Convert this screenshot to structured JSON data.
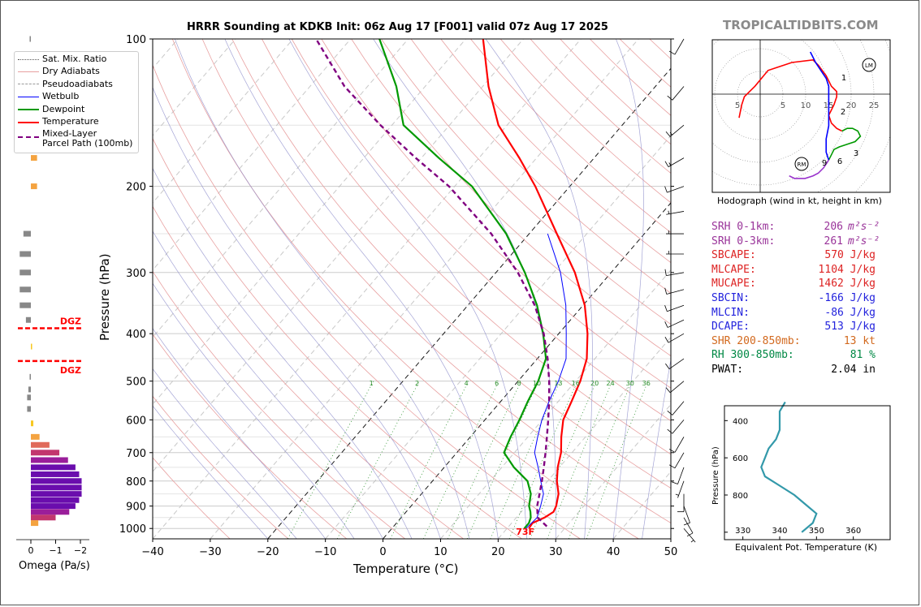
{
  "header": {
    "title": "HRRR Sounding at KDKB Init: 06z Aug 17 [F001] valid 07z Aug 17 2025",
    "brand": "TROPICALTIDBITS.COM"
  },
  "chart_data": {
    "type": "skew-t",
    "xlabel": "Temperature (°C)",
    "ylabel": "Pressure (hPa)",
    "xlim": [
      -40,
      50
    ],
    "ylim": [
      1050,
      100
    ],
    "y_log": true,
    "x_ticks": [
      "−40",
      "−30",
      "−20",
      "−10",
      "0",
      "10",
      "20",
      "30",
      "40",
      "50"
    ],
    "y_ticks": [
      "100",
      "200",
      "300",
      "400",
      "500",
      "600",
      "700",
      "800",
      "900",
      "1000"
    ],
    "mixing_ratio_labels": [
      "1",
      "2",
      "4",
      "6",
      "8",
      "10",
      "13",
      "16",
      "20",
      "24",
      "30",
      "36"
    ],
    "surface_temp_label": "73F",
    "legend": [
      {
        "label": "Sat. Mix. Ratio",
        "color": "#555555",
        "style": "dotted"
      },
      {
        "label": "Dry Adiabats",
        "color": "#e8a0a0",
        "style": "solid"
      },
      {
        "label": "Pseudoadiabats",
        "color": "#999999",
        "style": "dashed"
      },
      {
        "label": "Wetbulb",
        "color": "#0000ff",
        "style": "solid"
      },
      {
        "label": "Dewpoint",
        "color": "#009900",
        "style": "solid"
      },
      {
        "label": "Temperature",
        "color": "#ff0000",
        "style": "solid"
      },
      {
        "label": "Mixed-Layer\nParcel Path (100mb)",
        "color": "#800080",
        "style": "dashed"
      }
    ],
    "series": [
      {
        "name": "Temperature",
        "color": "#ff0000",
        "points": [
          [
            1000,
            23.8
          ],
          [
            975,
            23.6
          ],
          [
            950,
            24.9
          ],
          [
            925,
            25.6
          ],
          [
            900,
            25.2
          ],
          [
            850,
            23.8
          ],
          [
            800,
            21.6
          ],
          [
            750,
            19.7
          ],
          [
            700,
            18.1
          ],
          [
            650,
            15.8
          ],
          [
            600,
            13.6
          ],
          [
            550,
            12.3
          ],
          [
            500,
            10.8
          ],
          [
            450,
            8.6
          ],
          [
            400,
            5.0
          ],
          [
            350,
            0.3
          ],
          [
            300,
            -6.3
          ],
          [
            250,
            -15.2
          ],
          [
            200,
            -26.0
          ],
          [
            175,
            -33.0
          ],
          [
            150,
            -41.5
          ],
          [
            125,
            -49.0
          ],
          [
            100,
            -57.0
          ]
        ]
      },
      {
        "name": "Dewpoint",
        "color": "#009900",
        "points": [
          [
            1000,
            23.0
          ],
          [
            975,
            23.0
          ],
          [
            950,
            22.5
          ],
          [
            925,
            21.6
          ],
          [
            900,
            20.5
          ],
          [
            850,
            19.0
          ],
          [
            800,
            16.5
          ],
          [
            750,
            12.1
          ],
          [
            700,
            8.2
          ],
          [
            650,
            7.0
          ],
          [
            600,
            6.0
          ],
          [
            550,
            4.7
          ],
          [
            500,
            3.5
          ],
          [
            450,
            1.5
          ],
          [
            400,
            -2.7
          ],
          [
            350,
            -8.0
          ],
          [
            300,
            -15.0
          ],
          [
            250,
            -24.0
          ],
          [
            200,
            -37.0
          ],
          [
            175,
            -47.0
          ],
          [
            150,
            -58.0
          ],
          [
            125,
            -65.0
          ],
          [
            100,
            -75.0
          ]
        ]
      },
      {
        "name": "Wetbulb",
        "color": "#0000ff",
        "points": [
          [
            1000,
            23.3
          ],
          [
            950,
            23.6
          ],
          [
            900,
            22.5
          ],
          [
            850,
            21.2
          ],
          [
            800,
            18.8
          ],
          [
            750,
            16.3
          ],
          [
            700,
            13.5
          ],
          [
            650,
            11.7
          ],
          [
            600,
            9.9
          ],
          [
            550,
            8.4
          ],
          [
            500,
            7.0
          ],
          [
            450,
            5.0
          ],
          [
            400,
            1.3
          ],
          [
            350,
            -3.0
          ],
          [
            300,
            -8.8
          ],
          [
            250,
            -16.8
          ]
        ]
      },
      {
        "name": "Mixed-Layer Parcel Path (100mb)",
        "color": "#800080",
        "points": [
          [
            990,
            26.6
          ],
          [
            950,
            23.7
          ],
          [
            900,
            21.9
          ],
          [
            850,
            20.5
          ],
          [
            800,
            19.0
          ],
          [
            750,
            17.3
          ],
          [
            700,
            15.4
          ],
          [
            650,
            13.3
          ],
          [
            600,
            11.0
          ],
          [
            550,
            8.4
          ],
          [
            500,
            5.4
          ],
          [
            450,
            1.8
          ],
          [
            400,
            -2.6
          ],
          [
            350,
            -8.4
          ],
          [
            300,
            -16.2
          ],
          [
            250,
            -26.6
          ],
          [
            200,
            -41.0
          ],
          [
            175,
            -51.0
          ],
          [
            150,
            -62.0
          ],
          [
            125,
            -74.0
          ],
          [
            100,
            -86.0
          ]
        ]
      }
    ],
    "wind_barbs": [
      {
        "p": 100,
        "dir": 210,
        "kt": 10
      },
      {
        "p": 125,
        "dir": 220,
        "kt": 10
      },
      {
        "p": 150,
        "dir": 230,
        "kt": 15
      },
      {
        "p": 175,
        "dir": 240,
        "kt": 15
      },
      {
        "p": 200,
        "dir": 250,
        "kt": 10
      },
      {
        "p": 225,
        "dir": 260,
        "kt": 5
      },
      {
        "p": 250,
        "dir": 270,
        "kt": 5
      },
      {
        "p": 275,
        "dir": 270,
        "kt": 5
      },
      {
        "p": 300,
        "dir": 260,
        "kt": 10
      },
      {
        "p": 325,
        "dir": 255,
        "kt": 10
      },
      {
        "p": 350,
        "dir": 250,
        "kt": 10
      },
      {
        "p": 375,
        "dir": 245,
        "kt": 10
      },
      {
        "p": 400,
        "dir": 240,
        "kt": 10
      },
      {
        "p": 450,
        "dir": 235,
        "kt": 10
      },
      {
        "p": 500,
        "dir": 230,
        "kt": 10
      },
      {
        "p": 550,
        "dir": 220,
        "kt": 10
      },
      {
        "p": 600,
        "dir": 220,
        "kt": 10
      },
      {
        "p": 650,
        "dir": 210,
        "kt": 10
      },
      {
        "p": 700,
        "dir": 210,
        "kt": 10
      },
      {
        "p": 750,
        "dir": 200,
        "kt": 10
      },
      {
        "p": 800,
        "dir": 200,
        "kt": 5
      },
      {
        "p": 850,
        "dir": 180,
        "kt": 10
      },
      {
        "p": 900,
        "dir": 160,
        "kt": 10
      },
      {
        "p": 950,
        "dir": 150,
        "kt": 10
      },
      {
        "p": 1000,
        "dir": 140,
        "kt": 5
      }
    ]
  },
  "omega": {
    "xlabel": "Omega (Pa/s)",
    "x_ticks": [
      "0",
      "−1",
      "−2"
    ],
    "dgz_label": "DGZ",
    "dgz_top_hpa": 390,
    "dgz_bottom_hpa": 455,
    "bars": [
      {
        "p": 100,
        "v": 0.05
      },
      {
        "p": 150,
        "v": -0.1
      },
      {
        "p": 175,
        "v": -0.25
      },
      {
        "p": 200,
        "v": -0.25
      },
      {
        "p": 250,
        "v": 0.3
      },
      {
        "p": 275,
        "v": 0.45
      },
      {
        "p": 300,
        "v": 0.45
      },
      {
        "p": 325,
        "v": 0.45
      },
      {
        "p": 350,
        "v": 0.45
      },
      {
        "p": 375,
        "v": 0.2
      },
      {
        "p": 425,
        "v": -0.05
      },
      {
        "p": 490,
        "v": 0.05
      },
      {
        "p": 520,
        "v": 0.1
      },
      {
        "p": 540,
        "v": 0.15
      },
      {
        "p": 570,
        "v": 0.15
      },
      {
        "p": 610,
        "v": -0.1
      },
      {
        "p": 650,
        "v": -0.35
      },
      {
        "p": 675,
        "v": -0.75
      },
      {
        "p": 700,
        "v": -1.15
      },
      {
        "p": 725,
        "v": -1.5
      },
      {
        "p": 750,
        "v": -1.8
      },
      {
        "p": 775,
        "v": -1.95
      },
      {
        "p": 800,
        "v": -2.05
      },
      {
        "p": 825,
        "v": -2.05
      },
      {
        "p": 850,
        "v": -2.05
      },
      {
        "p": 875,
        "v": -1.95
      },
      {
        "p": 900,
        "v": -1.8
      },
      {
        "p": 925,
        "v": -1.55
      },
      {
        "p": 950,
        "v": -1.0
      },
      {
        "p": 975,
        "v": -0.3
      }
    ]
  },
  "hodograph": {
    "caption": "Hodograph (wind in kt, height in km)",
    "ring_labels": [
      "5",
      "5",
      "10",
      "15",
      "20",
      "25"
    ],
    "height_labels": [
      "1",
      "2",
      "3",
      "6",
      "9"
    ],
    "markers": [
      "LM",
      "RM"
    ],
    "segments": [
      {
        "color": "#ff0000",
        "pts": [
          [
            -8,
            -9
          ],
          [
            -7,
            -4
          ],
          [
            -6,
            -1
          ],
          [
            -2,
            3
          ],
          [
            3,
            9
          ],
          [
            6,
            10
          ],
          [
            12,
            12
          ],
          [
            20,
            13
          ],
          [
            22,
            11
          ],
          [
            25,
            7
          ],
          [
            27,
            3
          ],
          [
            28,
            2
          ],
          [
            29,
            1
          ],
          [
            29,
            -1
          ],
          [
            28,
            -4
          ],
          [
            27,
            -6
          ],
          [
            26,
            -8
          ],
          [
            27,
            -11
          ],
          [
            29,
            -13
          ],
          [
            31,
            -14
          ]
        ]
      },
      {
        "color": "#009900",
        "pts": [
          [
            31,
            -14
          ],
          [
            33,
            -13
          ],
          [
            35,
            -13
          ],
          [
            37,
            -14
          ],
          [
            38,
            -16
          ],
          [
            36,
            -18
          ],
          [
            33,
            -19
          ],
          [
            30,
            -20
          ],
          [
            28,
            -21
          ],
          [
            27,
            -23
          ],
          [
            26,
            -25
          ]
        ]
      },
      {
        "color": "#0000ff",
        "pts": [
          [
            26,
            -25
          ],
          [
            25,
            -22
          ],
          [
            25,
            -17
          ],
          [
            26,
            -12
          ],
          [
            26,
            -7
          ],
          [
            26,
            -3
          ],
          [
            26,
            0
          ],
          [
            26,
            3
          ],
          [
            25,
            6
          ],
          [
            23,
            9
          ],
          [
            21,
            12
          ],
          [
            20,
            14
          ],
          [
            19,
            16
          ]
        ]
      },
      {
        "color": "#9932cc",
        "pts": [
          [
            26,
            -25
          ],
          [
            24,
            -28
          ],
          [
            22,
            -30
          ],
          [
            20,
            -31
          ],
          [
            17,
            -32
          ],
          [
            13,
            -32
          ],
          [
            11,
            -31
          ]
        ]
      }
    ]
  },
  "indices": [
    {
      "label": "SRH 0-1km:",
      "value": "206",
      "unit": "m²s⁻²",
      "color": "#993399"
    },
    {
      "label": "SRH 0-3km:",
      "value": "261",
      "unit": "m²s⁻²",
      "color": "#993399"
    },
    {
      "label": "SBCAPE:",
      "value": "570 J/kg",
      "unit": "",
      "color": "#dd2222"
    },
    {
      "label": "MLCAPE:",
      "value": "1104 J/kg",
      "unit": "",
      "color": "#dd2222"
    },
    {
      "label": "MUCAPE:",
      "value": "1462 J/kg",
      "unit": "",
      "color": "#dd2222"
    },
    {
      "label": "SBCIN:",
      "value": "-166 J/kg",
      "unit": "",
      "color": "#2222dd"
    },
    {
      "label": "MLCIN:",
      "value": "-86 J/kg",
      "unit": "",
      "color": "#2222dd"
    },
    {
      "label": "DCAPE:",
      "value": "513 J/kg",
      "unit": "",
      "color": "#2222dd"
    },
    {
      "label": "SHR 200-850mb:",
      "value": "13 kt",
      "unit": "",
      "color": "#d2691e"
    },
    {
      "label": "RH 300-850mb:",
      "value": "81 %",
      "unit": "",
      "color": "#008844"
    },
    {
      "label": "PWAT:",
      "value": "2.04 in",
      "unit": "",
      "color": "#000000"
    }
  ],
  "theta_e": {
    "xlabel": "Equivalent Pot. Temperature (K)",
    "ylabel": "Pressure (hPa)",
    "x_ticks": [
      "330",
      "340",
      "350",
      "360"
    ],
    "y_ticks": [
      "400",
      "600",
      "800"
    ],
    "color": "#3399aa",
    "points": [
      [
        300,
        341.5
      ],
      [
        350,
        340
      ],
      [
        400,
        340
      ],
      [
        450,
        340
      ],
      [
        500,
        339
      ],
      [
        550,
        337
      ],
      [
        600,
        336
      ],
      [
        650,
        335
      ],
      [
        700,
        336
      ],
      [
        750,
        340
      ],
      [
        800,
        344
      ],
      [
        850,
        347
      ],
      [
        900,
        350
      ],
      [
        950,
        349
      ],
      [
        1000,
        346
      ]
    ]
  }
}
